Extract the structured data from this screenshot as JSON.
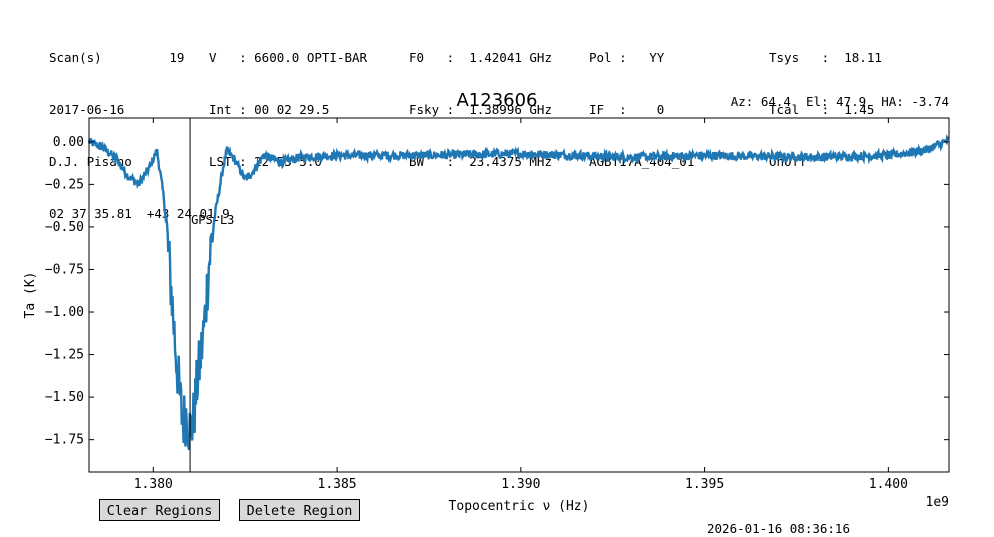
{
  "header": {
    "col1": [
      "Scan(s)         19",
      "2017-06-16",
      "D.J. Pisano",
      "02 37 35.81  +43 24 01.9"
    ],
    "col2": [
      "V   : 6600.0 OPTI-BAR",
      "Int : 00 02 29.5",
      "LST : 22 53 5.0"
    ],
    "col3": [
      "F0   :  1.42041 GHz",
      "Fsky :  1.38996 GHz",
      "BW   :  23.4375 MHz"
    ],
    "col4": [
      "Pol :   YY",
      "IF  :    0",
      "AGBT17A_404_01"
    ],
    "col5": [
      "Tsys   :  18.11",
      "Tcal   :  1.45",
      "OnOff"
    ],
    "title": "A123606",
    "azelha": "Az: 64.4  El: 47.9  HA: -3.74"
  },
  "chart_data": {
    "type": "line",
    "xlabel": "Topocentric ν (Hz)",
    "ylabel": "Ta (K)",
    "x_offset_label": "1e9",
    "xlim": [
      1378250000.0,
      1401650000.0
    ],
    "ylim": [
      -1.94,
      0.14
    ],
    "xticks": [
      1380000000.0,
      1385000000.0,
      1390000000.0,
      1395000000.0,
      1400000000.0
    ],
    "xtick_labels": [
      "1.380",
      "1.385",
      "1.390",
      "1.395",
      "1.400"
    ],
    "yticks": [
      0.0,
      -0.25,
      -0.5,
      -0.75,
      -1.0,
      -1.25,
      -1.5,
      -1.75
    ],
    "ytick_labels": [
      "0.00",
      "−0.25",
      "−0.50",
      "−0.75",
      "−1.00",
      "−1.25",
      "−1.50",
      "−1.75"
    ],
    "line_color": "#1f77b4",
    "series": [
      {
        "x": [
          1378250000.0,
          1378600000.0,
          1379000000.0,
          1379300000.0,
          1379600000.0,
          1379900000.0,
          1380100000.0,
          1380300000.0,
          1380500000.0,
          1380600000.0,
          1380700000.0,
          1380800000.0,
          1380900000.0,
          1381000000.0,
          1381100000.0,
          1381200000.0,
          1381300000.0,
          1381400000.0,
          1381500000.0,
          1381600000.0,
          1381700000.0,
          1381900000.0,
          1382000000.0,
          1382200000.0,
          1382500000.0,
          1382700000.0,
          1383000000.0,
          1383500000.0,
          1384000000.0,
          1385000000.0,
          1387000000.0,
          1390000000.0,
          1393000000.0,
          1395000000.0,
          1398000000.0,
          1400000000.0,
          1401000000.0,
          1401650000.0
        ],
        "y": [
          0.0,
          -0.03,
          -0.1,
          -0.2,
          -0.25,
          -0.15,
          -0.05,
          -0.35,
          -0.9,
          -1.2,
          -1.45,
          -1.65,
          -1.6,
          -1.7,
          -1.62,
          -1.4,
          -1.25,
          -1.05,
          -0.75,
          -0.55,
          -0.4,
          -0.15,
          -0.05,
          -0.1,
          -0.22,
          -0.18,
          -0.08,
          -0.12,
          -0.09,
          -0.08,
          -0.08,
          -0.07,
          -0.09,
          -0.08,
          -0.09,
          -0.08,
          -0.05,
          0.01
        ]
      }
    ],
    "annotation": {
      "label": "GPS-L3",
      "x": 1381000000.0
    }
  },
  "buttons": {
    "clear": "Clear Regions",
    "delete": "Delete Region"
  },
  "footer": {
    "timestamp": "2026-01-16 08:36:16"
  }
}
